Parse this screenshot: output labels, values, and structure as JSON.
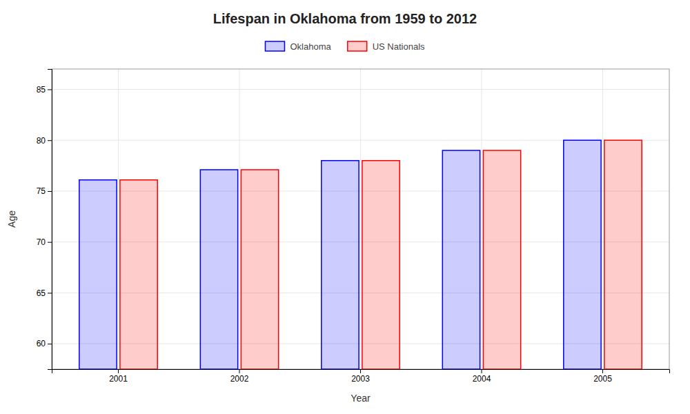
{
  "chart_data": {
    "type": "bar",
    "title": "Lifespan in Oklahoma from 1959 to 2012",
    "xlabel": "Year",
    "ylabel": "Age",
    "categories": [
      "2001",
      "2002",
      "2003",
      "2004",
      "2005"
    ],
    "series": [
      {
        "name": "Oklahoma",
        "color": "#0000ff",
        "values": [
          76.1,
          77.1,
          78.0,
          79.0,
          80.0
        ]
      },
      {
        "name": "US Nationals",
        "color": "#ff0000",
        "values": [
          76.1,
          77.1,
          78.0,
          79.0,
          80.0
        ]
      }
    ],
    "ylim": [
      57.5,
      87
    ],
    "yticks": [
      60,
      65,
      70,
      75,
      80,
      85
    ],
    "grid": true,
    "legend": "top"
  }
}
